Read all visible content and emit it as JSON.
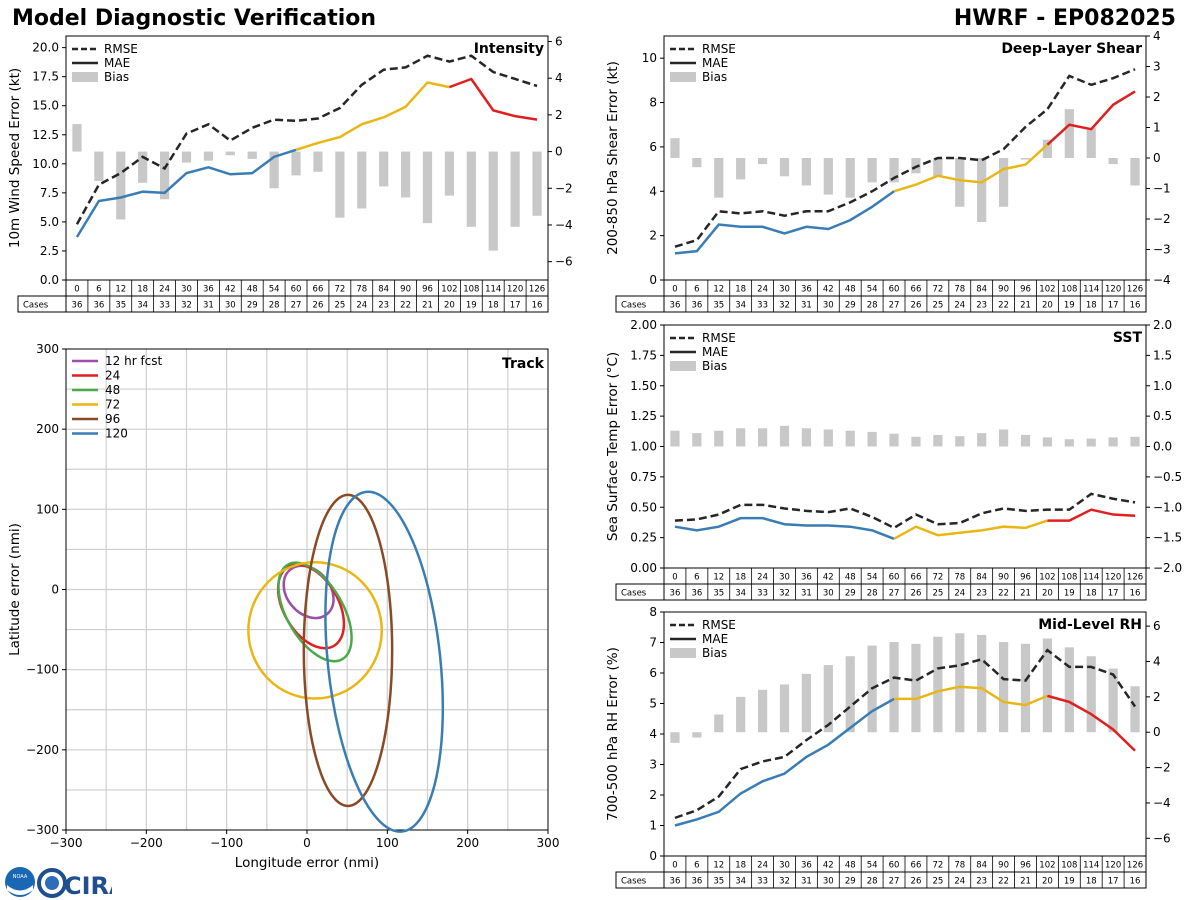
{
  "header": {
    "title": "Model Diagnostic Verification",
    "storm": "HWRF - EP082025"
  },
  "logo": {
    "noaa_text": "NOAA",
    "cira_text": "CIRA"
  },
  "chart_data": [
    {
      "id": "intensity",
      "type": "line+bar",
      "title": "Intensity",
      "ylabel": "10m Wind Speed Error (kt)",
      "ylim": [
        0,
        21
      ],
      "yticks": [
        "0.0",
        "2.5",
        "5.0",
        "7.5",
        "10.0",
        "12.5",
        "15.0",
        "17.5",
        "20.0"
      ],
      "ytick_values": [
        0,
        2.5,
        5,
        7.5,
        10,
        12.5,
        15,
        17.5,
        20
      ],
      "y2lim": [
        -7,
        6.3
      ],
      "y2ticks": [
        "−6",
        "−4",
        "−2",
        "0",
        "2",
        "4",
        "6"
      ],
      "y2tick_values": [
        -6,
        -4,
        -2,
        0,
        2,
        4,
        6
      ],
      "legend": [
        "RMSE",
        "MAE",
        "Bias"
      ],
      "hours": [
        "0",
        "6",
        "12",
        "18",
        "24",
        "30",
        "36",
        "42",
        "48",
        "54",
        "60",
        "66",
        "72",
        "78",
        "84",
        "90",
        "96",
        "102",
        "108",
        "114",
        "120",
        "126"
      ],
      "cases_label": "Cases",
      "cases": [
        "36",
        "36",
        "35",
        "34",
        "33",
        "32",
        "31",
        "30",
        "29",
        "28",
        "27",
        "26",
        "25",
        "24",
        "23",
        "22",
        "21",
        "20",
        "19",
        "18",
        "17",
        "16"
      ],
      "rmse": [
        4.8,
        8.2,
        9.2,
        10.6,
        9.6,
        12.6,
        13.4,
        12.0,
        13.1,
        13.8,
        13.7,
        13.9,
        14.8,
        16.8,
        18.1,
        18.3,
        19.3,
        18.8,
        19.3,
        17.9,
        17.3,
        16.7
      ],
      "mae": [
        3.7,
        6.8,
        7.1,
        7.6,
        7.5,
        9.2,
        9.7,
        9.1,
        9.2,
        10.6,
        11.2,
        11.8,
        12.3,
        13.4,
        14.0,
        14.9,
        17.0,
        16.6,
        17.3,
        14.6,
        14.1,
        13.8
      ],
      "bias": [
        1.5,
        -1.6,
        -3.7,
        -1.7,
        -2.6,
        -0.6,
        -0.5,
        -0.2,
        -0.4,
        -2.0,
        -1.3,
        -1.1,
        -3.6,
        -3.1,
        -1.9,
        -2.5,
        -3.9,
        -2.4,
        -4.1,
        -5.4,
        -4.1,
        -3.5
      ]
    },
    {
      "id": "shear",
      "type": "line+bar",
      "title": "Deep-Layer Shear",
      "ylabel": "200-850 hPa Shear Error (kt)",
      "ylim": [
        0,
        11
      ],
      "yticks": [
        "0",
        "2",
        "4",
        "6",
        "8",
        "10"
      ],
      "ytick_values": [
        0,
        2,
        4,
        6,
        8,
        10
      ],
      "y2lim": [
        -4,
        4
      ],
      "y2ticks": [
        "−4",
        "−3",
        "−2",
        "−1",
        "0",
        "1",
        "2",
        "3",
        "4"
      ],
      "y2tick_values": [
        -4,
        -3,
        -2,
        -1,
        0,
        1,
        2,
        3,
        4
      ],
      "legend": [
        "RMSE",
        "MAE",
        "Bias"
      ],
      "hours": [
        "0",
        "6",
        "12",
        "18",
        "24",
        "30",
        "36",
        "42",
        "48",
        "54",
        "60",
        "66",
        "72",
        "78",
        "84",
        "90",
        "96",
        "102",
        "108",
        "114",
        "120",
        "126"
      ],
      "cases_label": "Cases",
      "cases": [
        "36",
        "36",
        "35",
        "34",
        "33",
        "32",
        "31",
        "30",
        "29",
        "28",
        "27",
        "26",
        "25",
        "24",
        "23",
        "22",
        "21",
        "20",
        "19",
        "18",
        "17",
        "16"
      ],
      "rmse": [
        1.5,
        1.8,
        3.1,
        3.0,
        3.1,
        2.9,
        3.1,
        3.1,
        3.5,
        4.0,
        4.6,
        5.1,
        5.5,
        5.5,
        5.4,
        5.9,
        6.9,
        7.7,
        9.2,
        8.8,
        9.1,
        9.5
      ],
      "mae": [
        1.2,
        1.3,
        2.5,
        2.4,
        2.4,
        2.1,
        2.4,
        2.3,
        2.7,
        3.3,
        4.0,
        4.3,
        4.7,
        4.5,
        4.4,
        5.0,
        5.2,
        6.1,
        7.0,
        6.8,
        7.9,
        8.5
      ],
      "bias": [
        0.65,
        -0.3,
        -1.3,
        -0.7,
        -0.2,
        -0.6,
        -0.9,
        -1.2,
        -1.3,
        -0.8,
        -0.8,
        -0.5,
        -0.6,
        -1.6,
        -2.1,
        -1.6,
        -0.05,
        0.6,
        1.6,
        1.0,
        -0.2,
        -0.9
      ]
    },
    {
      "id": "sst",
      "type": "line+bar",
      "title": "SST",
      "ylabel": "Sea Surface Temp Error (°C)",
      "ylim": [
        0,
        2
      ],
      "yticks": [
        "0.00",
        "0.25",
        "0.50",
        "0.75",
        "1.00",
        "1.25",
        "1.50",
        "1.75",
        "2.00"
      ],
      "ytick_values": [
        0,
        0.25,
        0.5,
        0.75,
        1,
        1.25,
        1.5,
        1.75,
        2
      ],
      "y2lim": [
        -2,
        2
      ],
      "y2ticks": [
        "−2.0",
        "−1.5",
        "−1.0",
        "−0.5",
        "0.0",
        "0.5",
        "1.0",
        "1.5",
        "2.0"
      ],
      "y2tick_values": [
        -2,
        -1.5,
        -1,
        -0.5,
        0,
        0.5,
        1,
        1.5,
        2
      ],
      "legend": [
        "RMSE",
        "MAE",
        "Bias"
      ],
      "hours": [
        "0",
        "6",
        "12",
        "18",
        "24",
        "30",
        "36",
        "42",
        "48",
        "54",
        "60",
        "66",
        "72",
        "78",
        "84",
        "90",
        "96",
        "102",
        "108",
        "114",
        "120",
        "126"
      ],
      "cases_label": "Cases",
      "cases": [
        "36",
        "36",
        "35",
        "34",
        "33",
        "32",
        "31",
        "30",
        "29",
        "28",
        "27",
        "26",
        "25",
        "24",
        "23",
        "22",
        "21",
        "20",
        "19",
        "18",
        "17",
        "16"
      ],
      "rmse": [
        0.39,
        0.4,
        0.44,
        0.52,
        0.52,
        0.49,
        0.47,
        0.46,
        0.49,
        0.42,
        0.33,
        0.44,
        0.36,
        0.37,
        0.45,
        0.49,
        0.47,
        0.48,
        0.48,
        0.61,
        0.57,
        0.54
      ],
      "mae": [
        0.34,
        0.31,
        0.34,
        0.41,
        0.41,
        0.36,
        0.35,
        0.35,
        0.34,
        0.31,
        0.24,
        0.34,
        0.27,
        0.29,
        0.31,
        0.34,
        0.33,
        0.39,
        0.39,
        0.48,
        0.44,
        0.43
      ],
      "bias": [
        0.26,
        0.22,
        0.26,
        0.3,
        0.3,
        0.34,
        0.3,
        0.28,
        0.26,
        0.24,
        0.21,
        0.16,
        0.19,
        0.17,
        0.22,
        0.28,
        0.19,
        0.15,
        0.12,
        0.13,
        0.15,
        0.16
      ]
    },
    {
      "id": "rh",
      "type": "line+bar",
      "title": "Mid-Level RH",
      "ylabel": "700-500 hPa RH Error (%)",
      "ylim": [
        0,
        8
      ],
      "yticks": [
        "0",
        "1",
        "2",
        "3",
        "4",
        "5",
        "6",
        "7",
        "8"
      ],
      "ytick_values": [
        0,
        1,
        2,
        3,
        4,
        5,
        6,
        7,
        8
      ],
      "y2lim": [
        -7,
        6.8
      ],
      "y2ticks": [
        "−6",
        "−4",
        "−2",
        "0",
        "2",
        "4",
        "6"
      ],
      "y2tick_values": [
        -6,
        -4,
        -2,
        0,
        2,
        4,
        6
      ],
      "legend": [
        "RMSE",
        "MAE",
        "Bias"
      ],
      "hours": [
        "0",
        "6",
        "12",
        "18",
        "24",
        "30",
        "36",
        "42",
        "48",
        "54",
        "60",
        "66",
        "72",
        "78",
        "84",
        "90",
        "96",
        "102",
        "108",
        "114",
        "120",
        "126"
      ],
      "cases_label": "Cases",
      "cases": [
        "36",
        "36",
        "35",
        "34",
        "33",
        "32",
        "31",
        "30",
        "29",
        "28",
        "27",
        "26",
        "25",
        "24",
        "23",
        "22",
        "21",
        "20",
        "19",
        "18",
        "17",
        "16"
      ],
      "rmse": [
        1.25,
        1.5,
        1.95,
        2.85,
        3.1,
        3.25,
        3.8,
        4.3,
        4.9,
        5.5,
        5.85,
        5.75,
        6.15,
        6.25,
        6.45,
        5.8,
        5.75,
        6.75,
        6.2,
        6.2,
        5.95,
        4.9
      ],
      "mae": [
        1.0,
        1.2,
        1.45,
        2.05,
        2.45,
        2.7,
        3.25,
        3.65,
        4.2,
        4.75,
        5.15,
        5.15,
        5.4,
        5.55,
        5.5,
        5.05,
        4.95,
        5.25,
        5.05,
        4.65,
        4.15,
        3.45
      ],
      "bias": [
        -0.6,
        -0.3,
        1.0,
        2.0,
        2.4,
        2.7,
        3.3,
        3.8,
        4.3,
        4.9,
        5.1,
        5.0,
        5.4,
        5.6,
        5.5,
        5.1,
        5.0,
        5.3,
        4.8,
        4.3,
        3.6,
        2.6
      ]
    },
    {
      "id": "track",
      "type": "ellipse",
      "title": "Track",
      "xlabel": "Longitude error (nmi)",
      "ylabel": "Latitude error (nmi)",
      "xlim": [
        -300,
        300
      ],
      "ylim": [
        -300,
        300
      ],
      "xticks": [
        "−300",
        "−200",
        "−100",
        "0",
        "100",
        "200",
        "300"
      ],
      "yticks": [
        "−300",
        "−200",
        "−100",
        "0",
        "100",
        "200",
        "300"
      ],
      "tick_values": [
        -300,
        -200,
        -100,
        0,
        100,
        200,
        300
      ],
      "grid_step": 50,
      "legend_position": "top-left",
      "ellipses": [
        {
          "label": "12 hr fcst",
          "color": "#9b4fa6",
          "cx": 2,
          "cy": -3,
          "rx": 27,
          "ry": 36,
          "rot_deg": -40
        },
        {
          "label": "24",
          "color": "#e02020",
          "cx": 5,
          "cy": -21,
          "rx": 34,
          "ry": 57,
          "rot_deg": -30
        },
        {
          "label": "48",
          "color": "#4aaa4a",
          "cx": 10,
          "cy": -28,
          "rx": 35,
          "ry": 68,
          "rot_deg": -30
        },
        {
          "label": "72",
          "color": "#e8b716",
          "cx": 10,
          "cy": -51,
          "rx": 83,
          "ry": 85,
          "rot_deg": 0
        },
        {
          "label": "96",
          "color": "#8b4a26",
          "cx": 51,
          "cy": -76,
          "rx": 55,
          "ry": 194,
          "rot_deg": 0
        },
        {
          "label": "120",
          "color": "#3a7db5",
          "cx": 96,
          "cy": -90,
          "rx": 70,
          "ry": 213,
          "rot_deg": -6
        }
      ]
    }
  ]
}
